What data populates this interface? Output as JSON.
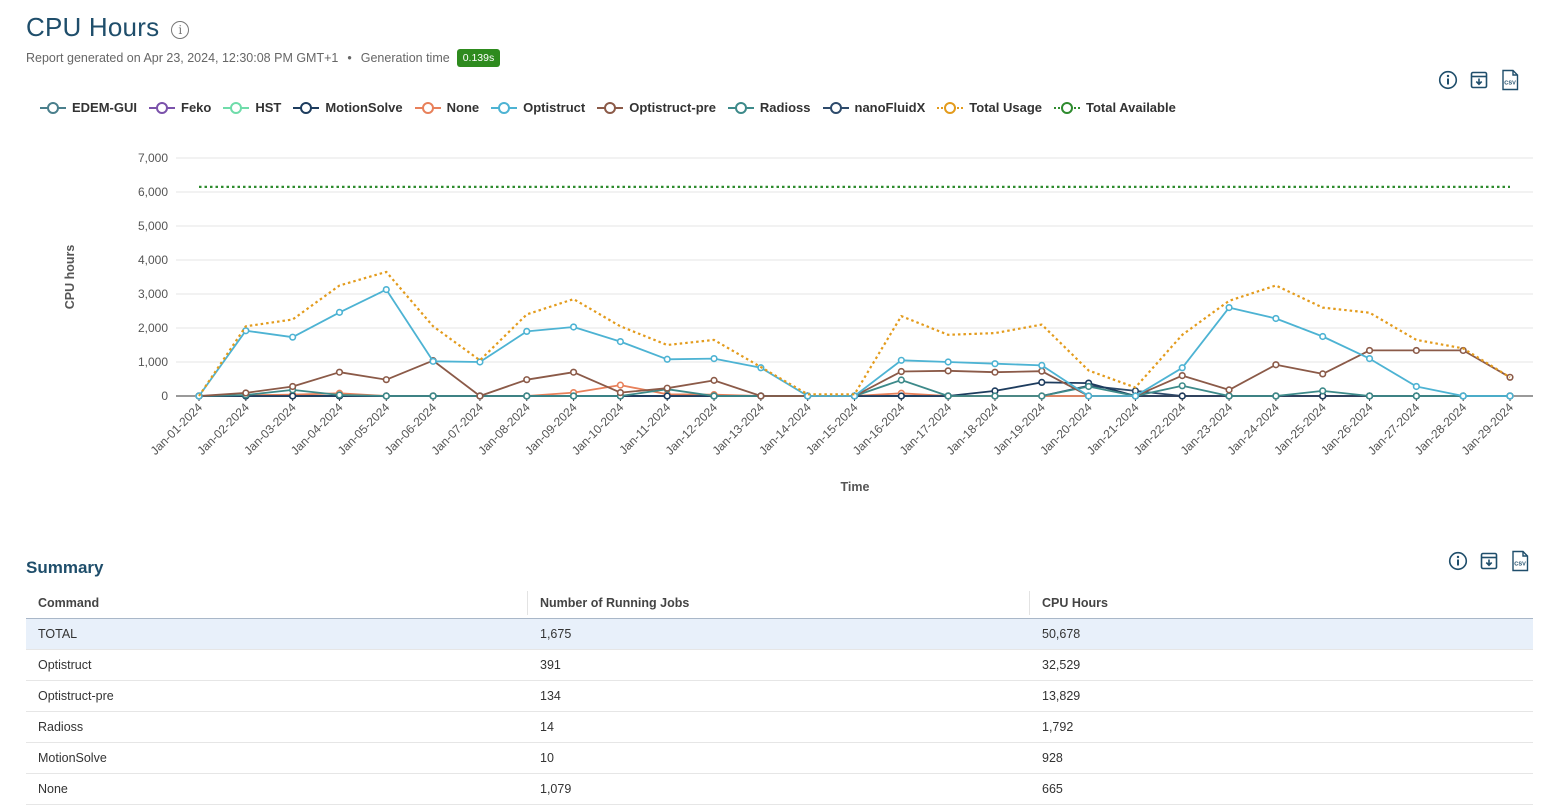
{
  "header": {
    "title": "CPU Hours",
    "report_generated": "Report generated on Apr 23, 2024, 12:30:08 PM GMT+1",
    "separator": "•",
    "generation_time_label": "Generation time",
    "generation_time_value": "0.139s"
  },
  "toolbar": {
    "icons": [
      "info-icon",
      "archive-download-icon",
      "csv-export-icon"
    ]
  },
  "legend": [
    {
      "name": "EDEM-GUI",
      "color": "#4a7f8c",
      "dash": false
    },
    {
      "name": "Feko",
      "color": "#7b52ab",
      "dash": false
    },
    {
      "name": "HST",
      "color": "#6fdcaa",
      "dash": false
    },
    {
      "name": "MotionSolve",
      "color": "#1d3c5e",
      "dash": false
    },
    {
      "name": "None",
      "color": "#e8805a",
      "dash": false
    },
    {
      "name": "Optistruct",
      "color": "#4db3d3",
      "dash": false
    },
    {
      "name": "Optistruct-pre",
      "color": "#8b5a48",
      "dash": false
    },
    {
      "name": "Radioss",
      "color": "#3d8a8a",
      "dash": false
    },
    {
      "name": "nanoFluidX",
      "color": "#2d4a6b",
      "dash": false
    },
    {
      "name": "Total Usage",
      "color": "#e39b1c",
      "dash": true
    },
    {
      "name": "Total Available",
      "color": "#2e8b2e",
      "dash": true
    }
  ],
  "chart_data": {
    "type": "line",
    "xlabel": "Time",
    "ylabel": "CPU hours",
    "ylim": [
      0,
      7000
    ],
    "yticks": [
      0,
      1000,
      2000,
      3000,
      4000,
      5000,
      6000,
      7000
    ],
    "ytick_labels": [
      "0",
      "1,000",
      "2,000",
      "3,000",
      "4,000",
      "5,000",
      "6,000",
      "7,000"
    ],
    "grid": true,
    "legend_position": "top",
    "categories": [
      "Jan-01-2024",
      "Jan-02-2024",
      "Jan-03-2024",
      "Jan-04-2024",
      "Jan-05-2024",
      "Jan-06-2024",
      "Jan-07-2024",
      "Jan-08-2024",
      "Jan-09-2024",
      "Jan-10-2024",
      "Jan-11-2024",
      "Jan-12-2024",
      "Jan-13-2024",
      "Jan-14-2024",
      "Jan-15-2024",
      "Jan-16-2024",
      "Jan-17-2024",
      "Jan-18-2024",
      "Jan-19-2024",
      "Jan-20-2024",
      "Jan-21-2024",
      "Jan-22-2024",
      "Jan-23-2024",
      "Jan-24-2024",
      "Jan-25-2024",
      "Jan-26-2024",
      "Jan-27-2024",
      "Jan-28-2024",
      "Jan-29-2024"
    ],
    "series": [
      {
        "name": "Total Available",
        "color": "#2e8b2e",
        "dash": true,
        "markers": false,
        "values": [
          6150,
          6150,
          6150,
          6150,
          6150,
          6150,
          6150,
          6150,
          6150,
          6150,
          6150,
          6150,
          6150,
          6150,
          6150,
          6150,
          6150,
          6150,
          6150,
          6150,
          6150,
          6150,
          6150,
          6150,
          6150,
          6150,
          6150,
          6150,
          6150
        ]
      },
      {
        "name": "Total Usage",
        "color": "#e39b1c",
        "dash": true,
        "markers": false,
        "values": [
          0,
          2050,
          2250,
          3250,
          3650,
          2050,
          1050,
          2400,
          2850,
          2050,
          1500,
          1650,
          850,
          50,
          50,
          2350,
          1800,
          1850,
          2100,
          750,
          250,
          1800,
          2800,
          3250,
          2600,
          2450,
          1650,
          1400,
          550
        ]
      },
      {
        "name": "Optistruct",
        "color": "#4db3d3",
        "dash": false,
        "markers": true,
        "values": [
          0,
          1920,
          1730,
          2460,
          3130,
          1020,
          1000,
          1900,
          2030,
          1600,
          1080,
          1100,
          830,
          0,
          0,
          1050,
          1000,
          950,
          900,
          0,
          0,
          830,
          2600,
          2280,
          1750,
          1100,
          280,
          0,
          0
        ]
      },
      {
        "name": "Optistruct-pre",
        "color": "#8b5a48",
        "dash": false,
        "markers": true,
        "values": [
          0,
          90,
          280,
          700,
          480,
          1040,
          0,
          480,
          700,
          100,
          230,
          460,
          0,
          0,
          0,
          720,
          740,
          700,
          730,
          0,
          0,
          600,
          180,
          920,
          650,
          1340,
          1340,
          1340,
          550
        ]
      },
      {
        "name": "Radioss",
        "color": "#3d8a8a",
        "dash": false,
        "markers": true,
        "values": [
          0,
          30,
          180,
          30,
          0,
          0,
          0,
          0,
          0,
          0,
          200,
          0,
          0,
          0,
          0,
          470,
          0,
          0,
          0,
          280,
          0,
          300,
          0,
          0,
          150,
          0,
          0,
          0,
          0
        ]
      },
      {
        "name": "MotionSolve",
        "color": "#1d3c5e",
        "dash": false,
        "markers": true,
        "values": [
          0,
          0,
          0,
          0,
          0,
          0,
          0,
          0,
          0,
          0,
          0,
          0,
          0,
          0,
          0,
          0,
          0,
          150,
          400,
          380,
          0,
          0,
          0,
          0,
          0,
          0,
          0,
          0,
          0
        ]
      },
      {
        "name": "None",
        "color": "#e8805a",
        "dash": false,
        "markers": true,
        "values": [
          0,
          20,
          40,
          80,
          0,
          0,
          0,
          0,
          100,
          320,
          50,
          40,
          0,
          0,
          0,
          80,
          0,
          0,
          0,
          0,
          0,
          0,
          0,
          0,
          0,
          0,
          0,
          0,
          0
        ]
      },
      {
        "name": "nanoFluidX",
        "color": "#2d4a6b",
        "dash": false,
        "markers": true,
        "values": [
          0,
          0,
          0,
          0,
          0,
          0,
          0,
          0,
          0,
          0,
          0,
          0,
          0,
          0,
          0,
          0,
          0,
          0,
          0,
          300,
          150,
          0,
          0,
          0,
          0,
          0,
          0,
          0,
          0
        ]
      },
      {
        "name": "EDEM-GUI",
        "color": "#4a7f8c",
        "dash": false,
        "markers": true,
        "values": [
          0,
          0,
          0,
          0,
          0,
          0,
          0,
          0,
          0,
          0,
          0,
          0,
          0,
          0,
          0,
          0,
          0,
          0,
          0,
          0,
          0,
          0,
          0,
          0,
          0,
          0,
          0,
          0,
          0
        ]
      }
    ]
  },
  "summary": {
    "title": "Summary",
    "columns": [
      "Command",
      "Number of Running Jobs",
      "CPU Hours"
    ],
    "rows": [
      [
        "TOTAL",
        "1,675",
        "50,678"
      ],
      [
        "Optistruct",
        "391",
        "32,529"
      ],
      [
        "Optistruct-pre",
        "134",
        "13,829"
      ],
      [
        "Radioss",
        "14",
        "1,792"
      ],
      [
        "MotionSolve",
        "10",
        "928"
      ],
      [
        "None",
        "1,079",
        "665"
      ]
    ]
  }
}
